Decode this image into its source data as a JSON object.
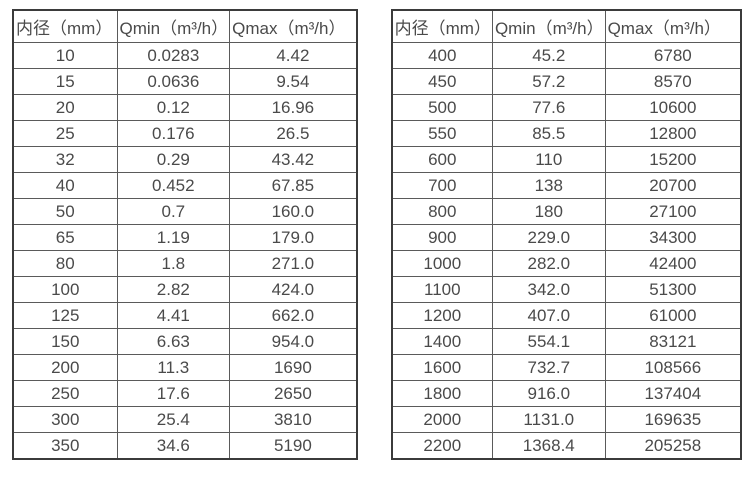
{
  "colors": {
    "background": "#ffffff",
    "outer_border": "#3b3b3b",
    "grid_line": "#5a5a5a",
    "text": "#4a4a4a"
  },
  "tables": [
    {
      "name": "flow-spec-table-small-diameters",
      "headers": [
        "内径（mm）",
        "Qmin（m³/h）",
        "Qmax（m³/h）"
      ],
      "rows": [
        [
          "10",
          "0.0283",
          "4.42"
        ],
        [
          "15",
          "0.0636",
          "9.54"
        ],
        [
          "20",
          "0.12",
          "16.96"
        ],
        [
          "25",
          "0.176",
          "26.5"
        ],
        [
          "32",
          "0.29",
          "43.42"
        ],
        [
          "40",
          "0.452",
          "67.85"
        ],
        [
          "50",
          "0.7",
          "160.0"
        ],
        [
          "65",
          "1.19",
          "179.0"
        ],
        [
          "80",
          "1.8",
          "271.0"
        ],
        [
          "100",
          "2.82",
          "424.0"
        ],
        [
          "125",
          "4.41",
          "662.0"
        ],
        [
          "150",
          "6.63",
          "954.0"
        ],
        [
          "200",
          "11.3",
          "1690"
        ],
        [
          "250",
          "17.6",
          "2650"
        ],
        [
          "300",
          "25.4",
          "3810"
        ],
        [
          "350",
          "34.6",
          "5190"
        ]
      ]
    },
    {
      "name": "flow-spec-table-large-diameters",
      "headers": [
        "内径（mm）",
        "Qmin（m³/h）",
        "Qmax（m³/h）"
      ],
      "rows": [
        [
          "400",
          "45.2",
          "6780"
        ],
        [
          "450",
          "57.2",
          "8570"
        ],
        [
          "500",
          "77.6",
          "10600"
        ],
        [
          "550",
          "85.5",
          "12800"
        ],
        [
          "600",
          "110",
          "15200"
        ],
        [
          "700",
          "138",
          "20700"
        ],
        [
          "800",
          "180",
          "27100"
        ],
        [
          "900",
          "229.0",
          "34300"
        ],
        [
          "1000",
          "282.0",
          "42400"
        ],
        [
          "1100",
          "342.0",
          "51300"
        ],
        [
          "1200",
          "407.0",
          "61000"
        ],
        [
          "1400",
          "554.1",
          "83121"
        ],
        [
          "1600",
          "732.7",
          "108566"
        ],
        [
          "1800",
          "916.0",
          "137404"
        ],
        [
          "2000",
          "1131.0",
          "169635"
        ],
        [
          "2200",
          "1368.4",
          "205258"
        ]
      ]
    }
  ]
}
